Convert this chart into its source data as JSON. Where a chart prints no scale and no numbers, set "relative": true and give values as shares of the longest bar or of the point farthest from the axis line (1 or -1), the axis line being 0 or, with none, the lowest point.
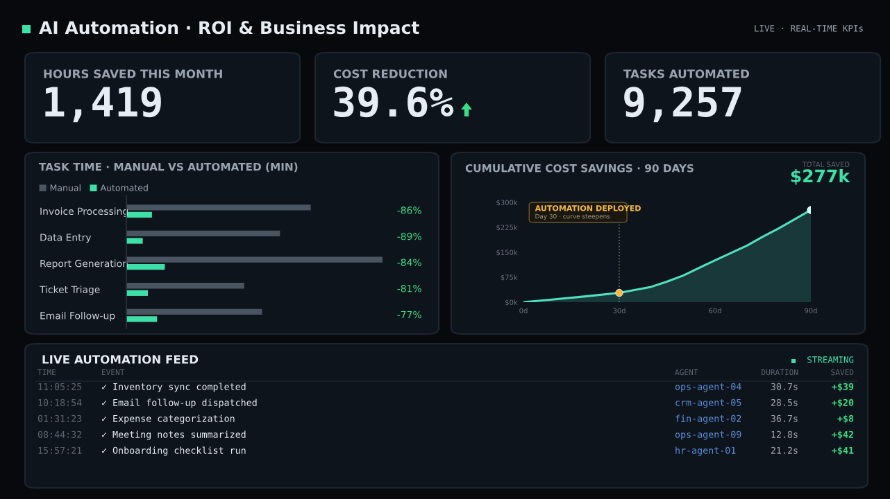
{
  "chart_data": [
    {
      "type": "other",
      "title": "AI Automation · ROI & Business Impact",
      "annotations": [
        "LIVE · REAL-TIME KPIs"
      ]
    },
    {
      "type": "other",
      "title": "HOURS SAVED THIS MONTH",
      "annotations": [
        "1,419"
      ]
    },
    {
      "type": "other",
      "title": "COST REDUCTION",
      "annotations": [
        "39.6%"
      ]
    },
    {
      "type": "other",
      "title": "TASKS AUTOMATED",
      "annotations": [
        "9,257"
      ]
    },
    {
      "type": "bar",
      "orientation": "horizontal",
      "relative": true,
      "title": "TASK TIME · MANUAL VS AUTOMATED (MIN)",
      "legend": "top left",
      "categories": [
        "Invoice Processing",
        "Data Entry",
        "Report Generation",
        "Ticket Triage",
        "Email Follow-up"
      ],
      "series": [
        {
          "name": "Manual",
          "color": "#4a5562",
          "values": [
            0.72,
            0.6,
            1,
            0.46,
            0.53
          ]
        },
        {
          "name": "Automated",
          "color": "#3ee0a8",
          "values": [
            0.1,
            0.064,
            0.15,
            0.084,
            0.12
          ]
        }
      ],
      "annotations": [
        "-86%",
        "-89%",
        "-84%",
        "-81%",
        "-77%"
      ]
    },
    {
      "type": "line",
      "title": "CUMULATIVE COST SAVINGS · 90 DAYS",
      "grid": false,
      "xlim": [
        0,
        90
      ],
      "xticks": [
        {
          "value": 0,
          "label": "0d"
        },
        {
          "value": 30,
          "label": "30d"
        },
        {
          "value": 60,
          "label": "60d"
        },
        {
          "value": 90,
          "label": "90d"
        }
      ],
      "ylim": [
        0,
        300
      ],
      "yticks": [
        {
          "value": 0,
          "label": "$0k"
        },
        {
          "value": 75,
          "label": "$75k"
        },
        {
          "value": 150,
          "label": "$150k"
        },
        {
          "value": 225,
          "label": "$225k"
        },
        {
          "value": 300,
          "label": "$300k"
        }
      ],
      "series": [
        {
          "type": "area",
          "color": "#4fe0c0",
          "x": [
            0,
            10,
            20,
            30,
            40,
            45,
            50,
            60,
            70,
            75,
            80,
            90
          ],
          "values": [
            0,
            9,
            18,
            28,
            46,
            62,
            80,
            126,
            170,
            197,
            222,
            277
          ]
        },
        {
          "type": "scatter",
          "color": "#f5b942",
          "x": [
            30
          ],
          "values": [
            28
          ]
        },
        {
          "type": "scatter",
          "color": "#c8fff0",
          "x": [
            90
          ],
          "values": [
            277
          ]
        }
      ],
      "ref_lines": [
        {
          "axis": "x",
          "value": 30,
          "color": "#6b6a55",
          "line_style": "dotted"
        }
      ],
      "annotations": [
        "AUTOMATION DEPLOYED",
        "Day 30 · curve steepens",
        "TOTAL SAVED",
        "$277k"
      ]
    },
    {
      "type": "other",
      "title": "LIVE AUTOMATION FEED",
      "annotations": [
        "STREAMING",
        "TIME",
        "EVENT",
        "AGENT",
        "DURATION",
        "SAVED",
        "11:05:25",
        "✓ Inventory sync completed",
        "ops-agent-04",
        "30.7s",
        "+$39",
        "10:18:54",
        "✓ Email follow-up dispatched",
        "crm-agent-05",
        "28.5s",
        "+$20",
        "01:31:23",
        "✓ Expense categorization",
        "fin-agent-02",
        "36.7s",
        "+$8",
        "08:44:32",
        "✓ Meeting notes summarized",
        "ops-agent-09",
        "12.8s",
        "+$42",
        "15:57:21",
        "✓ Onboarding checklist run",
        "hr-agent-01",
        "21.2s",
        "+$41"
      ]
    }
  ]
}
